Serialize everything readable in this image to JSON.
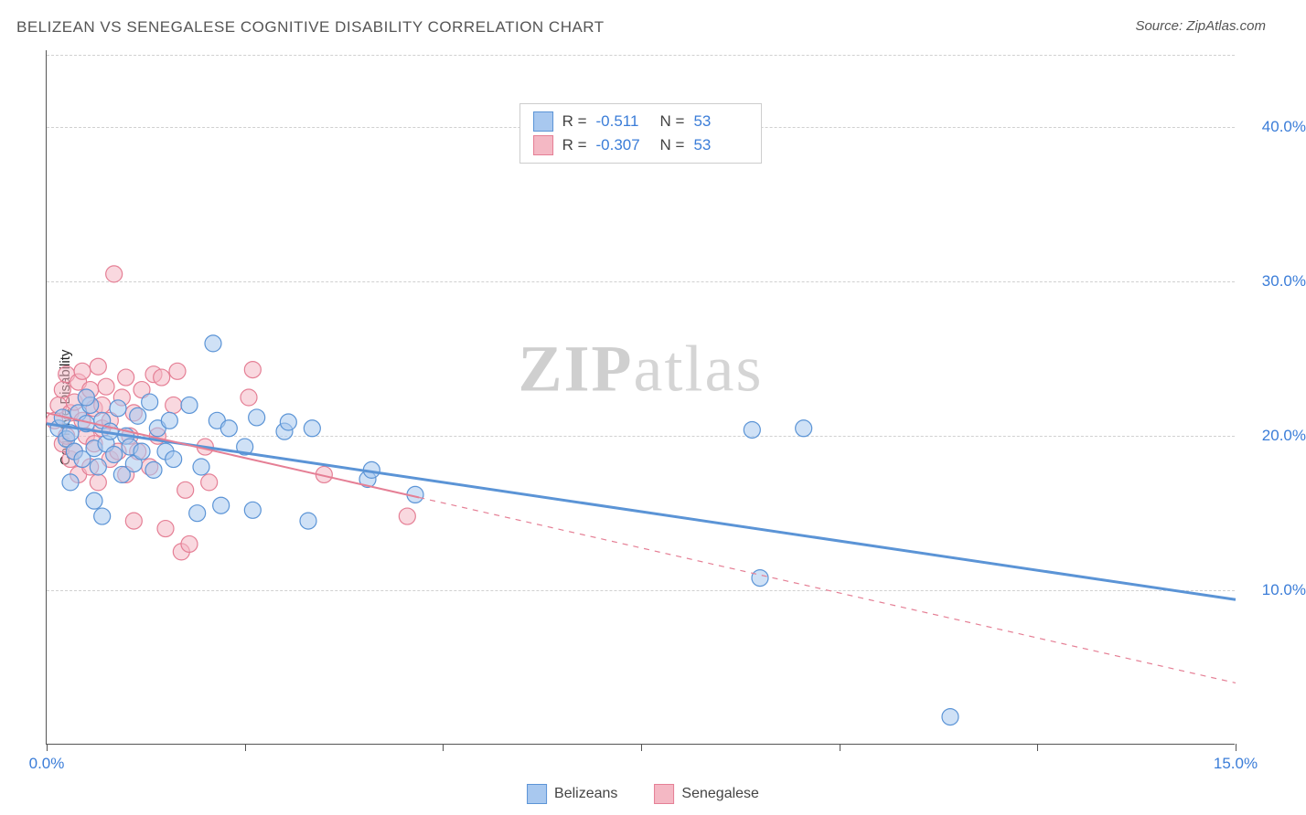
{
  "title": "BELIZEAN VS SENEGALESE COGNITIVE DISABILITY CORRELATION CHART",
  "source_label": "Source: ZipAtlas.com",
  "y_axis_label": "Cognitive Disability",
  "watermark": {
    "bold": "ZIP",
    "rest": "atlas"
  },
  "chart": {
    "type": "scatter",
    "background_color": "#ffffff",
    "grid_color": "#d0d0d0",
    "axis_color": "#555555",
    "xlim": [
      0,
      15
    ],
    "ylim": [
      0,
      45
    ],
    "x_ticks": [
      0,
      2.5,
      5,
      7.5,
      10,
      12.5,
      15
    ],
    "x_tick_labels_shown": {
      "0": "0.0%",
      "15": "15.0%"
    },
    "y_grid": [
      10,
      20,
      30,
      40
    ],
    "y_tick_labels": {
      "10": "10.0%",
      "20": "20.0%",
      "30": "30.0%",
      "40": "40.0%"
    },
    "tick_label_color": "#3b7dd8",
    "tick_label_fontsize": 17,
    "marker_radius": 9,
    "marker_opacity": 0.55,
    "series": [
      {
        "name": "Belizeans",
        "color_fill": "#a8c8ef",
        "color_stroke": "#5b94d6",
        "R": "-0.511",
        "N": "53",
        "regression": {
          "x1": 0,
          "y1": 20.8,
          "x1b": 15,
          "y1b": 9.4,
          "solid_until_x": 15
        },
        "points": [
          [
            0.15,
            20.5
          ],
          [
            0.2,
            21.2
          ],
          [
            0.25,
            19.8
          ],
          [
            0.3,
            20.2
          ],
          [
            0.35,
            19.0
          ],
          [
            0.4,
            21.5
          ],
          [
            0.45,
            18.5
          ],
          [
            0.5,
            20.8
          ],
          [
            0.55,
            22.0
          ],
          [
            0.6,
            19.2
          ],
          [
            0.6,
            15.8
          ],
          [
            0.65,
            18.0
          ],
          [
            0.7,
            21.0
          ],
          [
            0.75,
            19.5
          ],
          [
            0.8,
            20.3
          ],
          [
            0.85,
            18.8
          ],
          [
            0.9,
            21.8
          ],
          [
            0.95,
            17.5
          ],
          [
            1.0,
            20.0
          ],
          [
            1.05,
            19.3
          ],
          [
            1.1,
            18.2
          ],
          [
            1.15,
            21.3
          ],
          [
            1.2,
            19.0
          ],
          [
            1.3,
            22.2
          ],
          [
            1.35,
            17.8
          ],
          [
            1.4,
            20.5
          ],
          [
            1.5,
            19.0
          ],
          [
            1.55,
            21.0
          ],
          [
            1.8,
            22.0
          ],
          [
            1.9,
            15.0
          ],
          [
            1.95,
            18.0
          ],
          [
            2.1,
            26.0
          ],
          [
            2.15,
            21.0
          ],
          [
            2.2,
            15.5
          ],
          [
            2.3,
            20.5
          ],
          [
            2.5,
            19.3
          ],
          [
            2.6,
            15.2
          ],
          [
            2.65,
            21.2
          ],
          [
            3.0,
            20.3
          ],
          [
            3.05,
            20.9
          ],
          [
            3.3,
            14.5
          ],
          [
            3.35,
            20.5
          ],
          [
            4.05,
            17.2
          ],
          [
            4.1,
            17.8
          ],
          [
            4.65,
            16.2
          ],
          [
            8.9,
            20.4
          ],
          [
            9.0,
            10.8
          ],
          [
            9.55,
            20.5
          ],
          [
            11.4,
            1.8
          ],
          [
            0.7,
            14.8
          ],
          [
            1.6,
            18.5
          ],
          [
            0.3,
            17.0
          ],
          [
            0.5,
            22.5
          ]
        ]
      },
      {
        "name": "Senegalese",
        "color_fill": "#f4b8c4",
        "color_stroke": "#e57f95",
        "R": "-0.307",
        "N": "53",
        "regression": {
          "x1": 0,
          "y1": 21.5,
          "x1b": 15,
          "y1b": 4.0,
          "solid_until_x": 4.7
        },
        "points": [
          [
            0.1,
            21.0
          ],
          [
            0.15,
            22.0
          ],
          [
            0.2,
            19.5
          ],
          [
            0.2,
            23.0
          ],
          [
            0.25,
            20.0
          ],
          [
            0.25,
            24.0
          ],
          [
            0.3,
            21.5
          ],
          [
            0.3,
            18.5
          ],
          [
            0.35,
            22.2
          ],
          [
            0.35,
            19.0
          ],
          [
            0.4,
            23.5
          ],
          [
            0.4,
            17.5
          ],
          [
            0.45,
            21.0
          ],
          [
            0.45,
            24.2
          ],
          [
            0.5,
            20.0
          ],
          [
            0.5,
            22.5
          ],
          [
            0.55,
            18.0
          ],
          [
            0.55,
            23.0
          ],
          [
            0.6,
            21.8
          ],
          [
            0.6,
            19.5
          ],
          [
            0.65,
            24.5
          ],
          [
            0.65,
            17.0
          ],
          [
            0.7,
            22.0
          ],
          [
            0.7,
            20.5
          ],
          [
            0.75,
            23.2
          ],
          [
            0.8,
            18.5
          ],
          [
            0.8,
            21.0
          ],
          [
            0.85,
            30.5
          ],
          [
            0.9,
            19.0
          ],
          [
            0.95,
            22.5
          ],
          [
            1.0,
            17.5
          ],
          [
            1.0,
            23.8
          ],
          [
            1.05,
            20.0
          ],
          [
            1.1,
            21.5
          ],
          [
            1.1,
            14.5
          ],
          [
            1.15,
            19.0
          ],
          [
            1.2,
            23.0
          ],
          [
            1.3,
            18.0
          ],
          [
            1.35,
            24.0
          ],
          [
            1.4,
            20.0
          ],
          [
            1.5,
            14.0
          ],
          [
            1.6,
            22.0
          ],
          [
            1.65,
            24.2
          ],
          [
            1.7,
            12.5
          ],
          [
            1.75,
            16.5
          ],
          [
            1.8,
            13.0
          ],
          [
            2.0,
            19.3
          ],
          [
            2.05,
            17.0
          ],
          [
            2.55,
            22.5
          ],
          [
            2.6,
            24.3
          ],
          [
            3.5,
            17.5
          ],
          [
            4.55,
            14.8
          ],
          [
            1.45,
            23.8
          ]
        ]
      }
    ]
  },
  "bottom_legend": [
    {
      "label": "Belizeans",
      "fill": "#a8c8ef",
      "stroke": "#5b94d6"
    },
    {
      "label": "Senegalese",
      "fill": "#f4b8c4",
      "stroke": "#e57f95"
    }
  ]
}
